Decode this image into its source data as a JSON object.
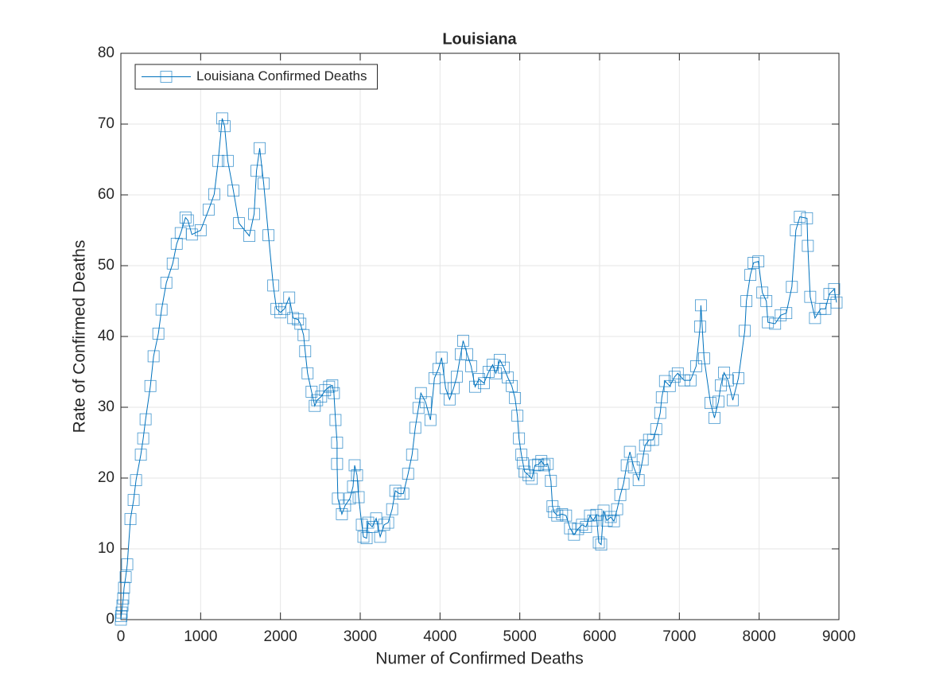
{
  "chart_data": {
    "type": "line",
    "title": "Louisiana",
    "x_label": "Numer of Confirmed Deaths",
    "y_label": "Rate of Confirmed Deaths",
    "xlim": [
      0,
      9000
    ],
    "ylim": [
      0,
      80
    ],
    "xticks": [
      0,
      1000,
      2000,
      3000,
      4000,
      5000,
      6000,
      7000,
      8000,
      9000
    ],
    "yticks": [
      0,
      10,
      20,
      30,
      40,
      50,
      60,
      70,
      80
    ],
    "grid": true,
    "legend": "northwest",
    "marker": "square",
    "series": [
      {
        "name": "Louisiana Confirmed Deaths",
        "color": "#0072bd",
        "x": [
          0,
          5,
          10,
          20,
          30,
          40,
          60,
          80,
          120,
          160,
          190,
          250,
          280,
          310,
          370,
          410,
          470,
          510,
          570,
          650,
          700,
          750,
          810,
          840,
          890,
          1000,
          1100,
          1170,
          1220,
          1270,
          1300,
          1340,
          1410,
          1480,
          1610,
          1670,
          1700,
          1740,
          1790,
          1850,
          1910,
          1950,
          2000,
          2050,
          2110,
          2160,
          2220,
          2250,
          2290,
          2310,
          2340,
          2390,
          2430,
          2460,
          2510,
          2560,
          2610,
          2650,
          2670,
          2690,
          2710,
          2710,
          2720,
          2770,
          2810,
          2870,
          2910,
          2930,
          2960,
          2980,
          3020,
          3040,
          3080,
          3100,
          3150,
          3200,
          3250,
          3300,
          3350,
          3400,
          3440,
          3490,
          3540,
          3600,
          3650,
          3690,
          3730,
          3760,
          3820,
          3880,
          3930,
          3980,
          4020,
          4070,
          4120,
          4170,
          4210,
          4260,
          4290,
          4340,
          4390,
          4440,
          4490,
          4550,
          4610,
          4660,
          4700,
          4750,
          4800,
          4850,
          4900,
          4940,
          4970,
          4990,
          5020,
          5040,
          5060,
          5110,
          5150,
          5190,
          5230,
          5270,
          5310,
          5350,
          5390,
          5410,
          5430,
          5470,
          5530,
          5580,
          5630,
          5680,
          5730,
          5780,
          5830,
          5880,
          5920,
          5960,
          5990,
          6020,
          6050,
          6090,
          6140,
          6180,
          6220,
          6260,
          6300,
          6340,
          6380,
          6430,
          6490,
          6540,
          6570,
          6620,
          6670,
          6710,
          6760,
          6780,
          6820,
          6880,
          6940,
          6980,
          7060,
          7140,
          7210,
          7260,
          7270,
          7310,
          7390,
          7440,
          7490,
          7520,
          7560,
          7610,
          7670,
          7740,
          7820,
          7840,
          7890,
          7930,
          7990,
          8040,
          8090,
          8110,
          8200,
          8270,
          8340,
          8410,
          8460,
          8510,
          8600,
          8610,
          8640,
          8700,
          8770,
          8830,
          8880,
          8940,
          8970
        ],
        "values": [
          0,
          0.5,
          1,
          2,
          3,
          4.5,
          6,
          7.8,
          14.2,
          16.9,
          19.7,
          23.3,
          25.6,
          28.3,
          33,
          37.2,
          40.4,
          43.8,
          47.6,
          50.3,
          53.1,
          54.6,
          56.8,
          56.4,
          54.4,
          55,
          57.9,
          60.1,
          64.8,
          70.8,
          69.7,
          64.8,
          60.6,
          56,
          54.2,
          57.3,
          63.4,
          66.6,
          61.6,
          54.3,
          47.2,
          43.9,
          43.4,
          43.9,
          45.5,
          42.6,
          42.4,
          41.8,
          40.2,
          37.9,
          34.8,
          32.2,
          30.2,
          31,
          31.5,
          32.4,
          32.9,
          33.1,
          32,
          28.2,
          25,
          22,
          17.1,
          14.9,
          16.1,
          17.1,
          18.8,
          21.8,
          20.4,
          17.3,
          13.4,
          11.7,
          11.5,
          13.7,
          13.1,
          14.3,
          11.7,
          13.4,
          13.7,
          15.6,
          18.2,
          17.8,
          17.8,
          20.6,
          23.3,
          27.1,
          29.9,
          32,
          30.7,
          28.2,
          34.1,
          35.4,
          37,
          32.7,
          31.1,
          32.7,
          34.3,
          37.5,
          39.4,
          37.5,
          35.8,
          32.9,
          34,
          33.4,
          35,
          36,
          34.8,
          36.7,
          35.6,
          34.2,
          33,
          31.3,
          28.8,
          25.6,
          23.3,
          22.1,
          20.9,
          20.4,
          19.9,
          21.8,
          21.9,
          22.4,
          21.8,
          22,
          19.6,
          16,
          15.2,
          14.7,
          14.9,
          14.7,
          12.9,
          12,
          12.8,
          13.4,
          13.1,
          14.7,
          14,
          14.8,
          10.9,
          10.6,
          15.4,
          14,
          14.5,
          13.9,
          15.6,
          17.6,
          19.2,
          21.8,
          23.7,
          21.5,
          19.7,
          22.6,
          24.6,
          25.4,
          25.4,
          26.9,
          29.2,
          31.4,
          33.7,
          33,
          34.3,
          34.8,
          33.8,
          33.8,
          35.8,
          41.4,
          44.4,
          36.9,
          30.6,
          28.5,
          30.8,
          33.1,
          34.9,
          33.8,
          31,
          34.1,
          40.8,
          45,
          48.7,
          50.4,
          50.6,
          46.2,
          45,
          42,
          41.8,
          43,
          43.3,
          47,
          55,
          56.9,
          56.7,
          52.8,
          45.6,
          42.6,
          43.9,
          43.9,
          46,
          46.7,
          44.8
        ]
      }
    ]
  }
}
